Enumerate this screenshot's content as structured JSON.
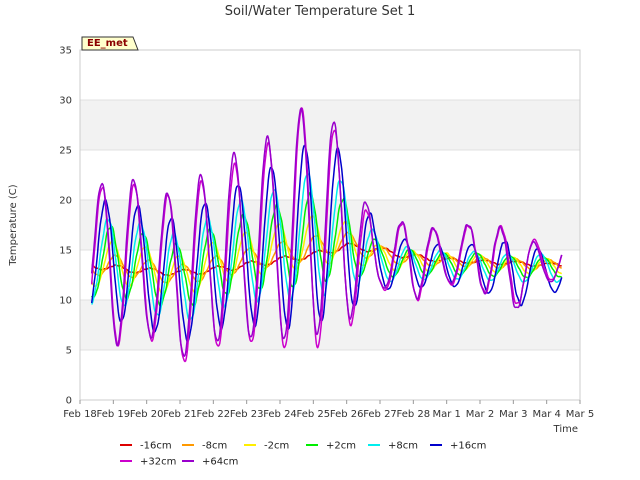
{
  "chart_data": {
    "type": "line",
    "title": "Soil/Water Temperature Set 1",
    "xlabel": "Time",
    "ylabel": "Temperature (C)",
    "station_label": "EE_met",
    "ylim": [
      0,
      35
    ],
    "yticks": [
      0,
      5,
      10,
      15,
      20,
      25,
      30,
      35
    ],
    "xlim_days": [
      0,
      15
    ],
    "xtick_labels": [
      "Feb 18",
      "Feb 19",
      "Feb 20",
      "Feb 21",
      "Feb 22",
      "Feb 23",
      "Feb 24",
      "Feb 25",
      "Feb 26",
      "Feb 27",
      "Feb 28",
      "Mar 1",
      "Mar 2",
      "Mar 3",
      "Mar 4",
      "Mar 5"
    ],
    "grid": "horizontal bands",
    "legend_position": "bottom",
    "series": [
      {
        "name": "-16cm",
        "color": "#dd0000",
        "base": [
          13.6,
          13.2,
          12.9,
          12.7,
          13.0,
          13.5,
          14.0,
          14.5,
          15.4,
          15.0,
          14.3,
          14.0,
          13.8,
          13.7,
          13.5
        ],
        "amp": [
          0.3,
          0.3,
          0.3,
          0.3,
          0.3,
          0.3,
          0.3,
          0.3,
          0.3,
          0.3,
          0.3,
          0.2,
          0.2,
          0.2,
          0.2
        ],
        "lag": 0.5
      },
      {
        "name": "-8cm",
        "color": "#ff9900",
        "base": [
          13.2,
          13.5,
          13.0,
          12.5,
          13.2,
          14.0,
          14.6,
          15.2,
          15.8,
          14.6,
          14.0,
          13.9,
          13.8,
          13.6,
          13.5
        ],
        "amp": [
          0.8,
          1.0,
          1.0,
          1.0,
          1.1,
          1.1,
          1.2,
          1.2,
          1.0,
          0.8,
          0.6,
          0.5,
          0.5,
          0.5,
          0.5
        ],
        "lag": 0.45
      },
      {
        "name": "-2cm",
        "color": "#ffee00",
        "base": [
          12.8,
          13.8,
          13.2,
          12.3,
          13.6,
          14.5,
          15.2,
          15.9,
          15.8,
          14.2,
          13.9,
          13.8,
          13.7,
          13.5,
          13.4
        ],
        "amp": [
          1.6,
          2.2,
          2.1,
          2.1,
          2.2,
          2.3,
          2.4,
          2.5,
          2.0,
          1.2,
          1.0,
          0.9,
          0.8,
          0.8,
          0.8
        ],
        "lag": 0.35
      },
      {
        "name": "+2cm",
        "color": "#00ee00",
        "base": [
          12.6,
          14.0,
          13.2,
          12.2,
          13.7,
          14.8,
          15.3,
          16.2,
          16.2,
          13.9,
          13.7,
          13.6,
          13.6,
          13.3,
          13.3
        ],
        "amp": [
          2.4,
          3.6,
          3.3,
          3.3,
          3.5,
          3.8,
          4.2,
          4.6,
          3.8,
          1.6,
          1.3,
          1.1,
          1.1,
          1.1,
          1.0
        ],
        "lag": 0.28
      },
      {
        "name": "+8cm",
        "color": "#00eeee",
        "base": [
          12.4,
          14.2,
          13.2,
          12.0,
          13.8,
          15.0,
          15.6,
          16.6,
          16.6,
          13.8,
          13.6,
          13.5,
          13.4,
          13.2,
          13.2
        ],
        "amp": [
          2.8,
          4.5,
          4.3,
          4.5,
          4.8,
          5.2,
          5.6,
          6.4,
          5.2,
          2.0,
          1.6,
          1.4,
          1.4,
          1.4,
          1.4
        ],
        "lag": 0.2
      },
      {
        "name": "+16cm",
        "color": "#0000cc",
        "base": [
          12.6,
          14.6,
          13.0,
          11.8,
          13.7,
          14.8,
          15.4,
          16.8,
          16.8,
          13.6,
          13.6,
          13.4,
          13.4,
          12.6,
          12.8
        ],
        "amp": [
          3.4,
          6.6,
          5.8,
          6.2,
          6.6,
          7.2,
          8.4,
          9.2,
          8.0,
          2.6,
          2.4,
          2.0,
          2.2,
          3.4,
          2.0
        ],
        "lag": 0.12
      },
      {
        "name": "+32cm",
        "color": "#cc00cc",
        "base": [
          12.0,
          14.8,
          13.2,
          12.2,
          13.8,
          15.0,
          15.8,
          17.8,
          16.0,
          13.2,
          14.4,
          13.8,
          14.6,
          13.0,
          13.8
        ],
        "amp": [
          3.8,
          9.4,
          6.8,
          8.6,
          8.6,
          9.2,
          10.6,
          12.8,
          9.0,
          2.0,
          4.6,
          2.2,
          3.6,
          3.8,
          1.8
        ],
        "lag": 0.02
      },
      {
        "name": "+64cm",
        "color": "#9900cc",
        "base": [
          12.2,
          15.2,
          13.4,
          12.6,
          14.6,
          15.8,
          16.4,
          18.4,
          17.0,
          13.4,
          14.6,
          13.8,
          14.8,
          12.6,
          13.6
        ],
        "amp": [
          3.6,
          9.8,
          6.8,
          8.4,
          8.8,
          9.6,
          10.4,
          12.0,
          9.2,
          2.0,
          4.6,
          2.0,
          3.8,
          3.8,
          1.8
        ],
        "lag": 0.0
      }
    ]
  }
}
